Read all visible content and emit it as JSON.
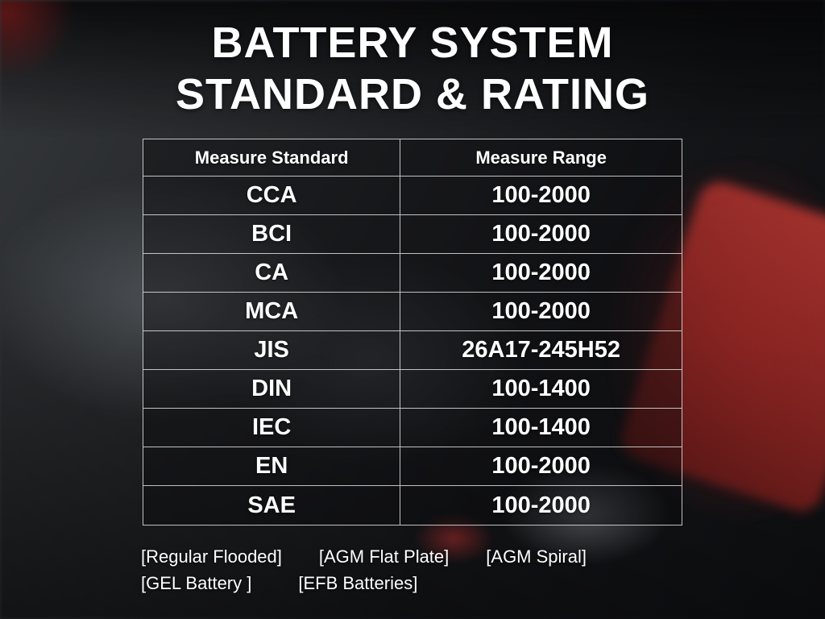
{
  "title": {
    "line1": "BATTERY SYSTEM",
    "line2": "STANDARD & RATING"
  },
  "chart_data": {
    "type": "table",
    "title": "BATTERY SYSTEM STANDARD & RATING",
    "columns": [
      "Measure Standard",
      "Measure Range"
    ],
    "rows": [
      [
        "CCA",
        "100-2000"
      ],
      [
        "BCI",
        "100-2000"
      ],
      [
        "CA",
        "100-2000"
      ],
      [
        "MCA",
        "100-2000"
      ],
      [
        "JIS",
        "26A17-245H52"
      ],
      [
        "DIN",
        "100-1400"
      ],
      [
        "IEC",
        "100-1400"
      ],
      [
        "EN",
        "100-2000"
      ],
      [
        "SAE",
        "100-2000"
      ]
    ]
  },
  "footer": {
    "line1": [
      "[Regular Flooded]",
      "[AGM Flat Plate]",
      "[AGM Spiral]"
    ],
    "line2": [
      "[GEL Battery ]",
      "[EFB Batteries]"
    ]
  },
  "colors": {
    "background": "#141518",
    "table_border": "#e1e1e1",
    "text": "#ffffff",
    "accent_red": "#b02a26"
  }
}
